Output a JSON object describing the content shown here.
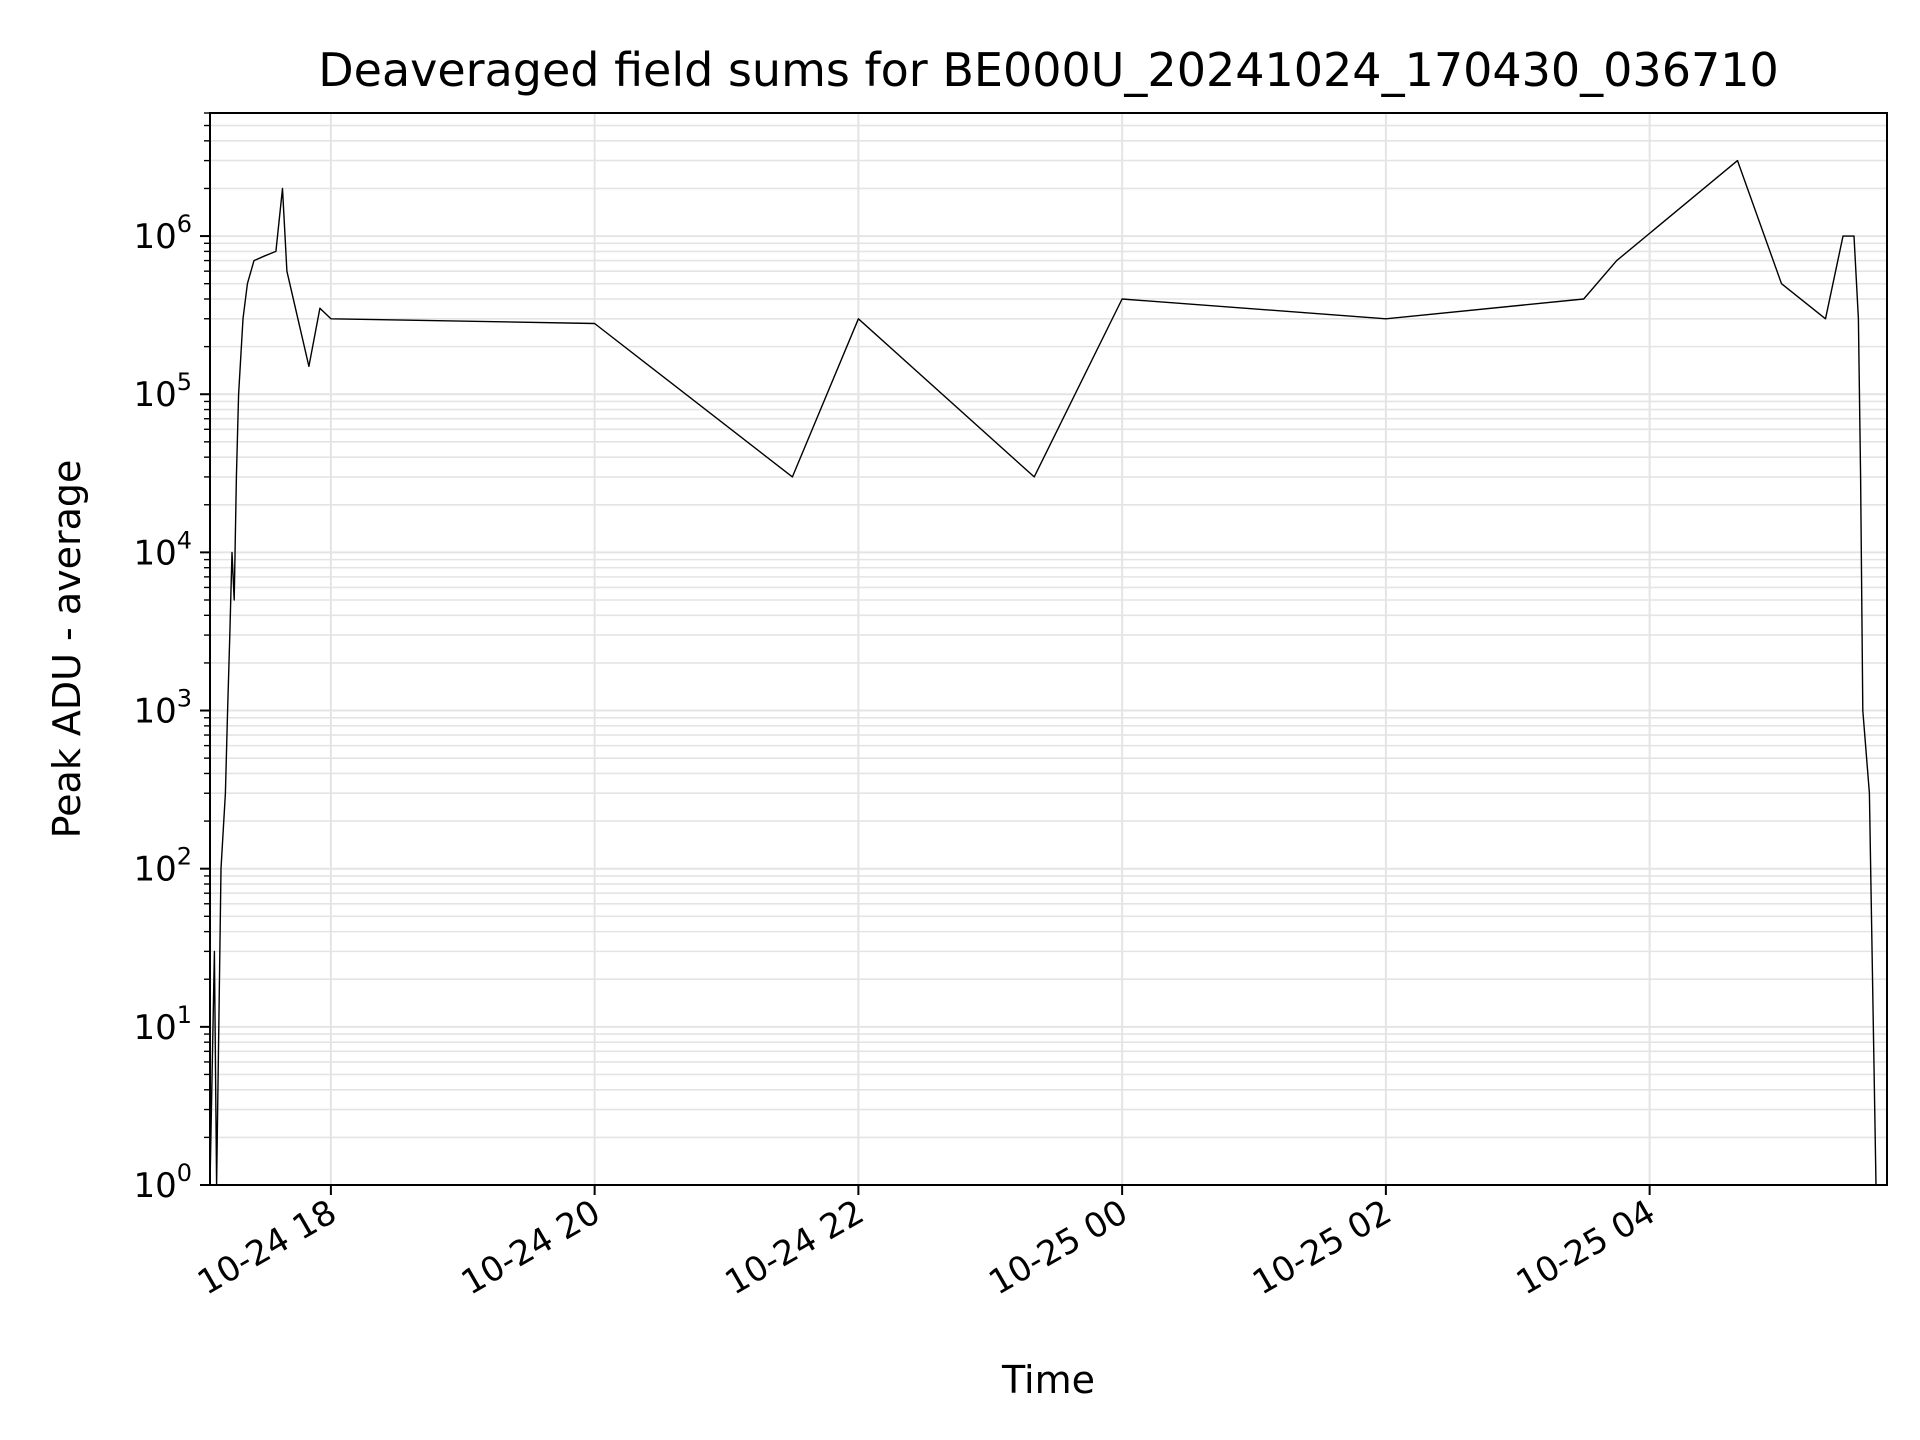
{
  "chart_data": {
    "type": "line",
    "title": "Deaveraged field sums for BE000U_20241024_170430_036710",
    "xlabel": "Time",
    "ylabel": "Peak ADU - average",
    "yscale": "log",
    "ylim": [
      1,
      6000000
    ],
    "xlim": [
      "2024-10-24 17:05",
      "2024-10-25 05:48"
    ],
    "grid": true,
    "y_tick_labels": [
      {
        "base": "10",
        "exp": "0",
        "value": 1
      },
      {
        "base": "10",
        "exp": "1",
        "value": 10
      },
      {
        "base": "10",
        "exp": "2",
        "value": 100
      },
      {
        "base": "10",
        "exp": "3",
        "value": 1000
      },
      {
        "base": "10",
        "exp": "4",
        "value": 10000
      },
      {
        "base": "10",
        "exp": "5",
        "value": 100000
      },
      {
        "base": "10",
        "exp": "6",
        "value": 1000000
      }
    ],
    "x_tick_labels": [
      {
        "label": "10-24 18",
        "time": "2024-10-24 18:00"
      },
      {
        "label": "10-24 20",
        "time": "2024-10-24 20:00"
      },
      {
        "label": "10-24 22",
        "time": "2024-10-24 22:00"
      },
      {
        "label": "10-25 00",
        "time": "2024-10-25 00:00"
      },
      {
        "label": "10-25 02",
        "time": "2024-10-25 02:00"
      },
      {
        "label": "10-25 04",
        "time": "2024-10-25 04:00"
      }
    ],
    "series": [
      {
        "color": "#000000",
        "points": [
          {
            "t": "2024-10-24 17:05",
            "y": 1
          },
          {
            "t": "2024-10-24 17:07",
            "y": 30
          },
          {
            "t": "2024-10-24 17:08",
            "y": 1
          },
          {
            "t": "2024-10-24 17:10",
            "y": 100
          },
          {
            "t": "2024-10-24 17:12",
            "y": 300
          },
          {
            "t": "2024-10-24 17:13",
            "y": 1000
          },
          {
            "t": "2024-10-24 17:14",
            "y": 3000
          },
          {
            "t": "2024-10-24 17:15",
            "y": 10000
          },
          {
            "t": "2024-10-24 17:16",
            "y": 5000
          },
          {
            "t": "2024-10-24 17:17",
            "y": 30000
          },
          {
            "t": "2024-10-24 17:18",
            "y": 100000
          },
          {
            "t": "2024-10-24 17:20",
            "y": 300000
          },
          {
            "t": "2024-10-24 17:22",
            "y": 500000
          },
          {
            "t": "2024-10-24 17:25",
            "y": 700000
          },
          {
            "t": "2024-10-24 17:30",
            "y": 750000
          },
          {
            "t": "2024-10-24 17:35",
            "y": 800000
          },
          {
            "t": "2024-10-24 17:38",
            "y": 2000000
          },
          {
            "t": "2024-10-24 17:40",
            "y": 600000
          },
          {
            "t": "2024-10-24 17:45",
            "y": 300000
          },
          {
            "t": "2024-10-24 17:50",
            "y": 150000
          },
          {
            "t": "2024-10-24 17:55",
            "y": 350000
          },
          {
            "t": "2024-10-24 18:00",
            "y": 300000
          },
          {
            "t": "2024-10-24 20:00",
            "y": 280000
          },
          {
            "t": "2024-10-24 21:30",
            "y": 30000
          },
          {
            "t": "2024-10-24 22:00",
            "y": 300000
          },
          {
            "t": "2024-10-24 23:20",
            "y": 30000
          },
          {
            "t": "2024-10-25 00:00",
            "y": 400000
          },
          {
            "t": "2024-10-25 02:00",
            "y": 300000
          },
          {
            "t": "2024-10-25 03:30",
            "y": 400000
          },
          {
            "t": "2024-10-25 03:45",
            "y": 700000
          },
          {
            "t": "2024-10-25 04:40",
            "y": 3000000
          },
          {
            "t": "2024-10-25 05:00",
            "y": 500000
          },
          {
            "t": "2024-10-25 05:20",
            "y": 300000
          },
          {
            "t": "2024-10-25 05:28",
            "y": 1000000
          },
          {
            "t": "2024-10-25 05:33",
            "y": 1000000
          },
          {
            "t": "2024-10-25 05:35",
            "y": 300000
          },
          {
            "t": "2024-10-25 05:36",
            "y": 30000
          },
          {
            "t": "2024-10-25 05:37",
            "y": 1000
          },
          {
            "t": "2024-10-25 05:40",
            "y": 300
          },
          {
            "t": "2024-10-25 05:43",
            "y": 1
          }
        ]
      }
    ]
  }
}
